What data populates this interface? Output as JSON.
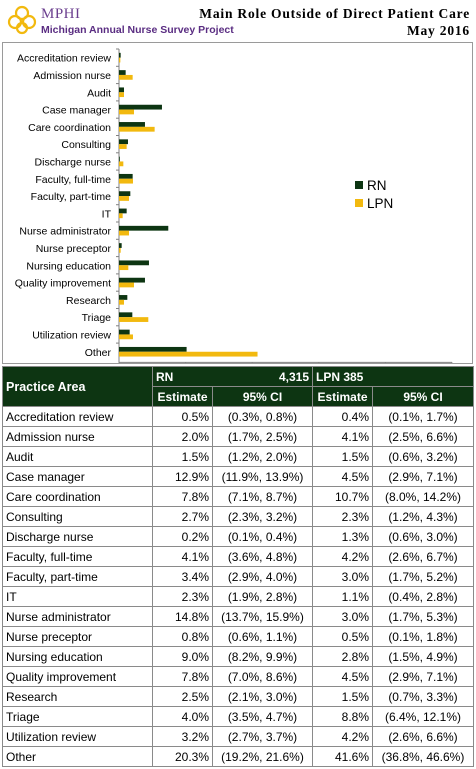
{
  "header": {
    "logo": "MPHI",
    "subtitle": "Michigan Annual Nurse Survey Project",
    "title": "Main Role Outside of Direct Patient Care",
    "date": "May 2016"
  },
  "colors": {
    "rn": "#0d3512",
    "lpn": "#f2b90f",
    "brand": "#6b3f8f"
  },
  "chart_data": {
    "type": "bar",
    "orientation": "horizontal",
    "categories": [
      "Accreditation review",
      "Admission nurse",
      "Audit",
      "Case manager",
      "Care coordination",
      "Consulting",
      "Discharge nurse",
      "Faculty, full-time",
      "Faculty, part-time",
      "IT",
      "Nurse administrator",
      "Nurse preceptor",
      "Nursing education",
      "Quality improvement",
      "Research",
      "Triage",
      "Utilization review",
      "Other"
    ],
    "series": [
      {
        "name": "RN",
        "values": [
          0.5,
          2.0,
          1.5,
          12.9,
          7.8,
          2.7,
          0.2,
          4.1,
          3.4,
          2.3,
          14.8,
          0.8,
          9.0,
          7.8,
          2.5,
          4.0,
          3.2,
          20.3
        ]
      },
      {
        "name": "LPN",
        "values": [
          0.4,
          4.1,
          1.5,
          4.5,
          10.7,
          2.3,
          1.3,
          4.2,
          3.0,
          1.1,
          3.0,
          0.5,
          2.8,
          4.5,
          1.5,
          8.8,
          4.2,
          41.6
        ]
      }
    ],
    "xlim": [
      0,
      100
    ],
    "xticks": [
      "0%",
      "20%",
      "40%",
      "60%",
      "80%",
      "100%"
    ],
    "legend": "right"
  },
  "table": {
    "col_area": "Practice Area",
    "rn_label": "RN",
    "rn_n": "4,315",
    "lpn_label": "LPN 385",
    "col_estimate": "Estimate",
    "col_ci": "95% CI",
    "rows": [
      {
        "area": "Accreditation review",
        "rn_est": "0.5%",
        "rn_ci": "(0.3%, 0.8%)",
        "lpn_est": "0.4%",
        "lpn_ci": "(0.1%, 1.7%)"
      },
      {
        "area": "Admission nurse",
        "rn_est": "2.0%",
        "rn_ci": "(1.7%, 2.5%)",
        "lpn_est": "4.1%",
        "lpn_ci": "(2.5%, 6.6%)"
      },
      {
        "area": "Audit",
        "rn_est": "1.5%",
        "rn_ci": "(1.2%, 2.0%)",
        "lpn_est": "1.5%",
        "lpn_ci": "(0.6%, 3.2%)"
      },
      {
        "area": "Case manager",
        "rn_est": "12.9%",
        "rn_ci": "(11.9%, 13.9%)",
        "lpn_est": "4.5%",
        "lpn_ci": "(2.9%, 7.1%)"
      },
      {
        "area": "Care coordination",
        "rn_est": "7.8%",
        "rn_ci": "(7.1%, 8.7%)",
        "lpn_est": "10.7%",
        "lpn_ci": "(8.0%, 14.2%)"
      },
      {
        "area": "Consulting",
        "rn_est": "2.7%",
        "rn_ci": "(2.3%, 3.2%)",
        "lpn_est": "2.3%",
        "lpn_ci": "(1.2%, 4.3%)"
      },
      {
        "area": "Discharge nurse",
        "rn_est": "0.2%",
        "rn_ci": "(0.1%, 0.4%)",
        "lpn_est": "1.3%",
        "lpn_ci": "(0.6%, 3.0%)"
      },
      {
        "area": "Faculty, full-time",
        "rn_est": "4.1%",
        "rn_ci": "(3.6%, 4.8%)",
        "lpn_est": "4.2%",
        "lpn_ci": "(2.6%, 6.7%)"
      },
      {
        "area": "Faculty, part-time",
        "rn_est": "3.4%",
        "rn_ci": "(2.9%, 4.0%)",
        "lpn_est": "3.0%",
        "lpn_ci": "(1.7%, 5.2%)"
      },
      {
        "area": "IT",
        "rn_est": "2.3%",
        "rn_ci": "(1.9%, 2.8%)",
        "lpn_est": "1.1%",
        "lpn_ci": "(0.4%, 2.8%)"
      },
      {
        "area": "Nurse administrator",
        "rn_est": "14.8%",
        "rn_ci": "(13.7%, 15.9%)",
        "lpn_est": "3.0%",
        "lpn_ci": "(1.7%, 5.3%)"
      },
      {
        "area": "Nurse preceptor",
        "rn_est": "0.8%",
        "rn_ci": "(0.6%, 1.1%)",
        "lpn_est": "0.5%",
        "lpn_ci": "(0.1%, 1.8%)"
      },
      {
        "area": "Nursing education",
        "rn_est": "9.0%",
        "rn_ci": "(8.2%, 9.9%)",
        "lpn_est": "2.8%",
        "lpn_ci": "(1.5%, 4.9%)"
      },
      {
        "area": "Quality improvement",
        "rn_est": "7.8%",
        "rn_ci": "(7.0%, 8.6%)",
        "lpn_est": "4.5%",
        "lpn_ci": "(2.9%, 7.1%)"
      },
      {
        "area": "Research",
        "rn_est": "2.5%",
        "rn_ci": "(2.1%, 3.0%)",
        "lpn_est": "1.5%",
        "lpn_ci": "(0.7%, 3.3%)"
      },
      {
        "area": "Triage",
        "rn_est": "4.0%",
        "rn_ci": "(3.5%, 4.7%)",
        "lpn_est": "8.8%",
        "lpn_ci": "(6.4%, 12.1%)"
      },
      {
        "area": "Utilization review",
        "rn_est": "3.2%",
        "rn_ci": "(2.7%, 3.7%)",
        "lpn_est": "4.2%",
        "lpn_ci": "(2.6%, 6.6%)"
      },
      {
        "area": "Other",
        "rn_est": "20.3%",
        "rn_ci": "(19.2%, 21.6%)",
        "lpn_est": "41.6%",
        "lpn_ci": "(36.8%, 46.6%)"
      }
    ]
  }
}
